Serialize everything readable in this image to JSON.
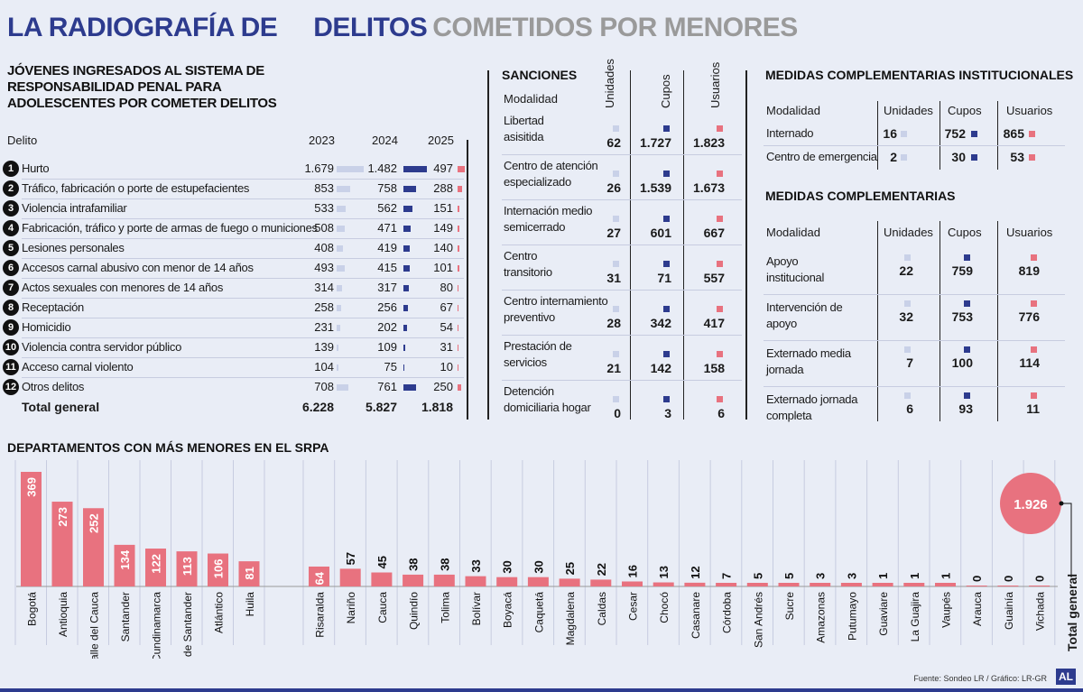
{
  "header": {
    "title_part1": "LA RADIOGRAFÍA DE",
    "title_part2": "DELITOS",
    "title_part3": "COMETIDOS POR MENORES"
  },
  "colors": {
    "c2023": "#c9d1e8",
    "c2024": "#2d3b8e",
    "c2025": "#e8727f",
    "dept_bar": "#e8727f",
    "dark_blue": "#2d3b8e"
  },
  "crimes_section": {
    "title": "JÓVENES INGRESADOS AL SISTEMA DE RESPONSABILIDAD PENAL PARA ADOLESCENTES POR COMETER DELITOS",
    "col_delito": "Delito",
    "year1": "2023",
    "year2": "2024",
    "year3": "2025",
    "rows": [
      {
        "n": "1",
        "label": "Hurto",
        "v2023": "1.679",
        "v2024": "1.482",
        "v2025": "497"
      },
      {
        "n": "2",
        "label": "Tráfico, fabricación o porte de estupefacientes",
        "v2023": "853",
        "v2024": "758",
        "v2025": "288"
      },
      {
        "n": "3",
        "label": "Violencia intrafamiliar",
        "v2023": "533",
        "v2024": "562",
        "v2025": "151"
      },
      {
        "n": "4",
        "label": "Fabricación, tráfico y porte de armas de fuego o municiones",
        "v2023": "508",
        "v2024": "471",
        "v2025": "149"
      },
      {
        "n": "5",
        "label": "Lesiones personales",
        "v2023": "408",
        "v2024": "419",
        "v2025": "140"
      },
      {
        "n": "6",
        "label": "Accesos carnal abusivo con menor de 14 años",
        "v2023": "493",
        "v2024": "415",
        "v2025": "101"
      },
      {
        "n": "7",
        "label": "Actos sexuales con menores de 14 años",
        "v2023": "314",
        "v2024": "317",
        "v2025": "80"
      },
      {
        "n": "8",
        "label": "Receptación",
        "v2023": "258",
        "v2024": "256",
        "v2025": "67"
      },
      {
        "n": "9",
        "label": "Homicidio",
        "v2023": "231",
        "v2024": "202",
        "v2025": "54"
      },
      {
        "n": "10",
        "label": "Violencia contra servidor público",
        "v2023": "139",
        "v2024": "109",
        "v2025": "31"
      },
      {
        "n": "11",
        "label": "Acceso carnal violento",
        "v2023": "104",
        "v2024": "75",
        "v2025": "10"
      },
      {
        "n": "12",
        "label": "Otros delitos",
        "v2023": "708",
        "v2024": "761",
        "v2025": "250"
      }
    ],
    "total_label": "Total general",
    "total2023": "6.228",
    "total2024": "5.827",
    "total2025": "1.818"
  },
  "sanciones": {
    "title": "SANCIONES",
    "col_modalidad": "Modalidad",
    "col_unidades": "Unidades",
    "col_cupos": "Cupos",
    "col_usuarios": "Usuarios",
    "rows": [
      {
        "label1": "Libertad",
        "label2": "asisitida",
        "u": "62",
        "c": "1.727",
        "us": "1.823"
      },
      {
        "label1": "Centro de atención",
        "label2": "especializado",
        "u": "26",
        "c": "1.539",
        "us": "1.673"
      },
      {
        "label1": "Internación medio",
        "label2": "semicerrado",
        "u": "27",
        "c": "601",
        "us": "667"
      },
      {
        "label1": "Centro",
        "label2": "transitorio",
        "u": "31",
        "c": "71",
        "us": "557"
      },
      {
        "label1": "Centro internamiento",
        "label2": "preventivo",
        "u": "28",
        "c": "342",
        "us": "417"
      },
      {
        "label1": "Prestación de",
        "label2": "servicios",
        "u": "21",
        "c": "142",
        "us": "158"
      },
      {
        "label1": "Detención",
        "label2": "domiciliaria hogar",
        "u": "0",
        "c": "3",
        "us": "6"
      }
    ]
  },
  "medidas_inst": {
    "title": "MEDIDAS COMPLEMENTARIAS INSTITUCIONALES",
    "col_modalidad": "Modalidad",
    "col_unidades": "Unidades",
    "col_cupos": "Cupos",
    "col_usuarios": "Usuarios",
    "rows": [
      {
        "label": "Internado",
        "u": "16",
        "c": "752",
        "us": "865"
      },
      {
        "label": "Centro de emergencia",
        "u": "2",
        "c": "30",
        "us": "53"
      }
    ]
  },
  "medidas_comp": {
    "title": "MEDIDAS COMPLEMENTARIAS",
    "col_modalidad": "Modalidad",
    "col_unidades": "Unidades",
    "col_cupos": "Cupos",
    "col_usuarios": "Usuarios",
    "rows": [
      {
        "label1": "Apoyo",
        "label2": "institucional",
        "u": "22",
        "c": "759",
        "us": "819"
      },
      {
        "label1": "Intervención de",
        "label2": "apoyo",
        "u": "32",
        "c": "753",
        "us": "776"
      },
      {
        "label1": "Externado media",
        "label2": "jornada",
        "u": "7",
        "c": "100",
        "us": "114"
      },
      {
        "label1": "Externado jornada",
        "label2": "completa",
        "u": "6",
        "c": "93",
        "us": "11"
      }
    ]
  },
  "departments": {
    "title": "DEPARTAMENTOS CON MÁS MENORES EN EL SRPA",
    "total_label": "Total general",
    "total_value": "1.926"
  },
  "chart_data": {
    "type": "bar",
    "title": "DEPARTAMENTOS CON MÁS MENORES EN EL SRPA",
    "categories": [
      "Bogotá",
      "Antioquia",
      "Valle del Cauca",
      "Santander",
      "Cundinamarca",
      "Norte de Santander",
      "Atlántico",
      "Huila",
      "Risaralda",
      "Nariño",
      "Cauca",
      "Quindío",
      "Tolima",
      "Bolívar",
      "Boyacá",
      "Caquetá",
      "Magdalena",
      "Caldas",
      "Cesar",
      "Chocó",
      "Casanare",
      "Córdoba",
      "San Andrés",
      "Sucre",
      "Amazonas",
      "Putumayo",
      "Guaviare",
      "La Guajira",
      "Vaupés",
      "Arauca",
      "Guainía",
      "Vichada"
    ],
    "values": [
      369,
      273,
      252,
      134,
      122,
      113,
      106,
      81,
      64,
      57,
      45,
      38,
      38,
      33,
      30,
      30,
      25,
      22,
      16,
      13,
      12,
      7,
      5,
      5,
      3,
      3,
      1,
      1,
      1,
      0,
      0,
      0
    ],
    "total": 1926
  },
  "footer": {
    "source": "Fuente: Sondeo LR / Gráfico: LR-GR",
    "logo": "AL"
  }
}
